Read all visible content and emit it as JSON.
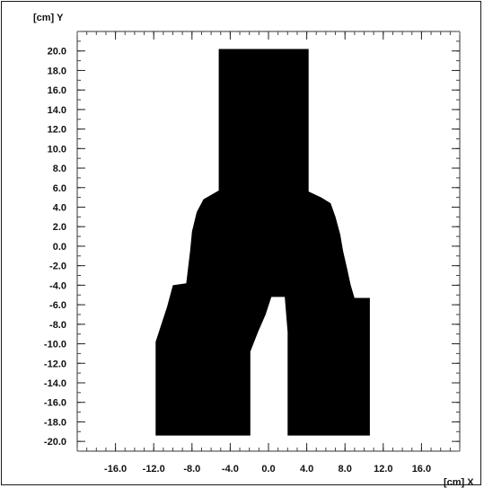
{
  "chart_data": {
    "type": "heatmap",
    "x_unit_label": "[cm] X",
    "y_unit_label": "[cm] Y",
    "xlim": [
      -20.0,
      20.0
    ],
    "ylim": [
      -21.0,
      22.0
    ],
    "x_major_ticks": [
      -16.0,
      -12.0,
      -8.0,
      -4.0,
      0.0,
      4.0,
      8.0,
      12.0,
      16.0
    ],
    "x_tick_labels": [
      "-16.0",
      "-12.0",
      "-8.0",
      "-4.0",
      "0.0",
      "4.0",
      "8.0",
      "12.0",
      "16.0"
    ],
    "y_major_ticks": [
      20.0,
      18.0,
      16.0,
      14.0,
      12.0,
      10.0,
      8.0,
      6.0,
      4.0,
      2.0,
      0.0,
      -2.0,
      -4.0,
      -6.0,
      -8.0,
      -10.0,
      -12.0,
      -14.0,
      -16.0,
      -18.0,
      -20.0
    ],
    "y_tick_labels": [
      "20.0",
      "18.0",
      "16.0",
      "14.0",
      "12.0",
      "10.0",
      "8.0",
      "6.0",
      "4.0",
      "2.0",
      "0.0",
      "-2.0",
      "-4.0",
      "-6.0",
      "-8.0",
      "-10.0",
      "-12.0",
      "-14.0",
      "-16.0",
      "-18.0",
      "-20.0"
    ],
    "minor_tick_step": 1.0,
    "field_color": "#000000",
    "background_color": "#ffffff",
    "field_outline": [
      [
        -5.2,
        20.2
      ],
      [
        4.2,
        20.2
      ],
      [
        4.2,
        5.6
      ],
      [
        5.5,
        5.0
      ],
      [
        6.5,
        4.4
      ],
      [
        7.0,
        3.0
      ],
      [
        7.5,
        1.2
      ],
      [
        7.8,
        -0.5
      ],
      [
        8.2,
        -2.2
      ],
      [
        8.6,
        -4.0
      ],
      [
        9.0,
        -5.3
      ],
      [
        10.6,
        -5.3
      ],
      [
        10.6,
        -19.4
      ],
      [
        2.0,
        -19.4
      ],
      [
        2.0,
        -8.8
      ],
      [
        1.7,
        -5.2
      ],
      [
        0.3,
        -5.2
      ],
      [
        -0.3,
        -7.0
      ],
      [
        -1.1,
        -8.8
      ],
      [
        -1.9,
        -10.8
      ],
      [
        -1.9,
        -19.4
      ],
      [
        -11.8,
        -19.4
      ],
      [
        -11.8,
        -9.8
      ],
      [
        -11.2,
        -8.0
      ],
      [
        -10.6,
        -6.2
      ],
      [
        -10.0,
        -4.0
      ],
      [
        -8.6,
        -3.8
      ],
      [
        -8.2,
        -0.5
      ],
      [
        -8.0,
        1.5
      ],
      [
        -7.5,
        3.5
      ],
      [
        -6.8,
        4.8
      ],
      [
        -5.2,
        5.7
      ]
    ]
  }
}
